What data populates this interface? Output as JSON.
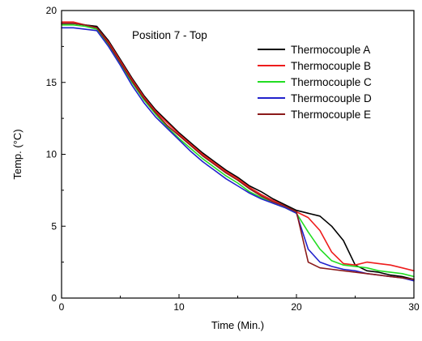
{
  "chart_data": {
    "type": "line",
    "title": "",
    "annotation": "Position 7 - Top",
    "xlabel": "Time (Min.)",
    "ylabel": "Temp. (°C)",
    "xlim": [
      0,
      30
    ],
    "ylim": [
      0,
      20
    ],
    "xticks": [
      0,
      10,
      20,
      30
    ],
    "yticks": [
      0,
      5,
      10,
      15,
      20
    ],
    "grid": false,
    "legend_position": "top-right",
    "series": [
      {
        "name": "Thermocouple A",
        "color": "#000000",
        "x": [
          0,
          1,
          2,
          3,
          4,
          5,
          6,
          7,
          8,
          9,
          10,
          11,
          12,
          13,
          14,
          15,
          16,
          17,
          18,
          19,
          20,
          21,
          22,
          23,
          24,
          25,
          26,
          27,
          28,
          29,
          30
        ],
        "y": [
          19.1,
          19.1,
          19.0,
          18.9,
          17.9,
          16.6,
          15.3,
          14.1,
          13.1,
          12.3,
          11.5,
          10.8,
          10.1,
          9.5,
          8.9,
          8.4,
          7.8,
          7.4,
          6.9,
          6.5,
          6.1,
          5.9,
          5.7,
          5.0,
          4.0,
          2.3,
          1.9,
          1.8,
          1.6,
          1.5,
          1.3
        ]
      },
      {
        "name": "Thermocouple B",
        "color": "#ee1c1c",
        "x": [
          0,
          1,
          2,
          3,
          4,
          5,
          6,
          7,
          8,
          9,
          10,
          11,
          12,
          13,
          14,
          15,
          16,
          17,
          18,
          19,
          20,
          21,
          22,
          23,
          24,
          25,
          26,
          27,
          28,
          29,
          30
        ],
        "y": [
          19.2,
          19.2,
          19.0,
          18.8,
          17.8,
          16.5,
          15.2,
          14.0,
          13.0,
          12.2,
          11.4,
          10.7,
          10.0,
          9.4,
          8.8,
          8.3,
          7.7,
          7.2,
          6.8,
          6.4,
          6.0,
          5.6,
          4.7,
          3.2,
          2.4,
          2.3,
          2.5,
          2.4,
          2.3,
          2.1,
          1.9
        ]
      },
      {
        "name": "Thermocouple C",
        "color": "#22dd22",
        "x": [
          0,
          1,
          2,
          3,
          4,
          5,
          6,
          7,
          8,
          9,
          10,
          11,
          12,
          13,
          14,
          15,
          16,
          17,
          18,
          19,
          20,
          21,
          22,
          23,
          24,
          25,
          26,
          27,
          28,
          29,
          30
        ],
        "y": [
          19.0,
          19.0,
          18.9,
          18.7,
          17.6,
          16.3,
          15.0,
          13.8,
          12.8,
          11.9,
          11.1,
          10.4,
          9.7,
          9.1,
          8.5,
          8.0,
          7.4,
          7.0,
          6.6,
          6.3,
          5.9,
          4.6,
          3.4,
          2.6,
          2.3,
          2.2,
          2.1,
          1.9,
          1.8,
          1.7,
          1.5
        ]
      },
      {
        "name": "Thermocouple D",
        "color": "#2222cc",
        "x": [
          0,
          1,
          2,
          3,
          4,
          5,
          6,
          7,
          8,
          9,
          10,
          11,
          12,
          13,
          14,
          15,
          16,
          17,
          18,
          19,
          20,
          21,
          22,
          23,
          24,
          25,
          26,
          27,
          28,
          29,
          30
        ],
        "y": [
          18.8,
          18.8,
          18.7,
          18.6,
          17.5,
          16.2,
          14.8,
          13.6,
          12.6,
          11.8,
          11.0,
          10.2,
          9.5,
          8.9,
          8.3,
          7.8,
          7.3,
          6.9,
          6.6,
          6.3,
          5.9,
          3.4,
          2.5,
          2.2,
          2.0,
          1.9,
          1.7,
          1.6,
          1.5,
          1.4,
          1.2
        ]
      },
      {
        "name": "Thermocouple E",
        "color": "#8b1a1a",
        "x": [
          0,
          1,
          2,
          3,
          4,
          5,
          6,
          7,
          8,
          9,
          10,
          11,
          12,
          13,
          14,
          15,
          16,
          17,
          18,
          19,
          20,
          21,
          22,
          23,
          24,
          25,
          26,
          27,
          28,
          29,
          30
        ],
        "y": [
          19.1,
          19.1,
          19.0,
          18.8,
          17.7,
          16.4,
          15.1,
          13.9,
          12.9,
          12.0,
          11.3,
          10.6,
          9.9,
          9.3,
          8.7,
          8.2,
          7.6,
          7.1,
          6.7,
          6.4,
          6.0,
          2.5,
          2.1,
          2.0,
          1.9,
          1.8,
          1.7,
          1.6,
          1.5,
          1.4,
          1.3
        ]
      }
    ]
  }
}
